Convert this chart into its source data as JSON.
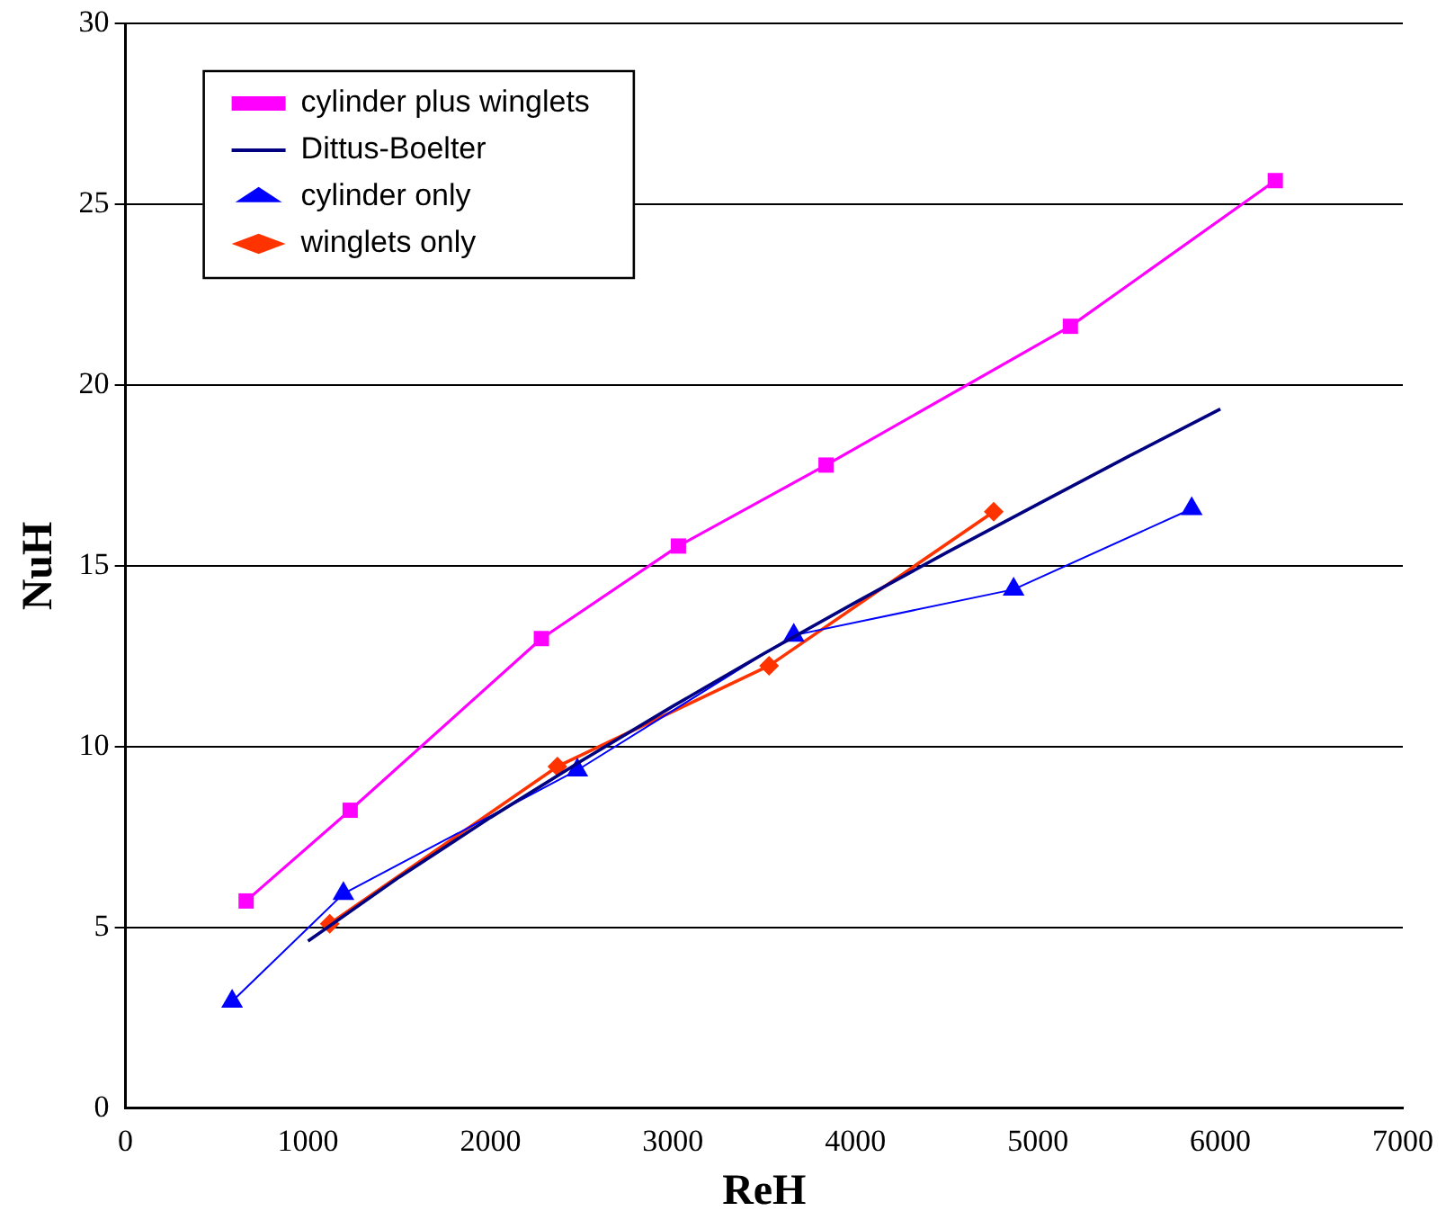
{
  "chart_data": {
    "type": "line",
    "xlabel": "ReH",
    "ylabel": "NuH",
    "xlim": [
      0,
      7000
    ],
    "xticks": [
      0,
      1000,
      2000,
      3000,
      4000,
      5000,
      6000,
      7000
    ],
    "ylim": [
      0,
      30
    ],
    "yticks": [
      0,
      5,
      10,
      15,
      20,
      25,
      30
    ],
    "grid": "y",
    "legend": "top left",
    "line_style": "solid",
    "series": [
      {
        "name": "cylinder plus winglets",
        "color": "#ff00ff",
        "marker": "square",
        "x": [
          661,
          1231,
          2279,
          3030,
          3839,
          5178,
          6301
        ],
        "values": [
          5.73,
          8.24,
          12.99,
          15.55,
          17.79,
          21.63,
          25.66
        ]
      },
      {
        "name": "Dittus-Boelter",
        "color": "#000080",
        "marker": "none",
        "x": [
          1000,
          1500,
          2000,
          2500,
          3000,
          3500,
          4000,
          4500,
          5000,
          5500,
          6000
        ],
        "values": [
          4.62,
          6.39,
          8.04,
          9.61,
          11.12,
          12.58,
          13.99,
          15.37,
          16.71,
          18.04,
          19.34
        ]
      },
      {
        "name": "cylinder only",
        "color": "#0000ff",
        "marker": "triangle",
        "x": [
          584,
          1194,
          2476,
          3662,
          4867,
          5843
        ],
        "values": [
          2.95,
          5.93,
          9.35,
          13.08,
          14.35,
          16.58
        ]
      },
      {
        "name": "winglets only",
        "color": "#ff3300",
        "marker": "diamond",
        "x": [
          1119,
          2367,
          3527,
          4758
        ],
        "values": [
          5.1,
          9.45,
          12.24,
          16.5
        ]
      }
    ]
  }
}
